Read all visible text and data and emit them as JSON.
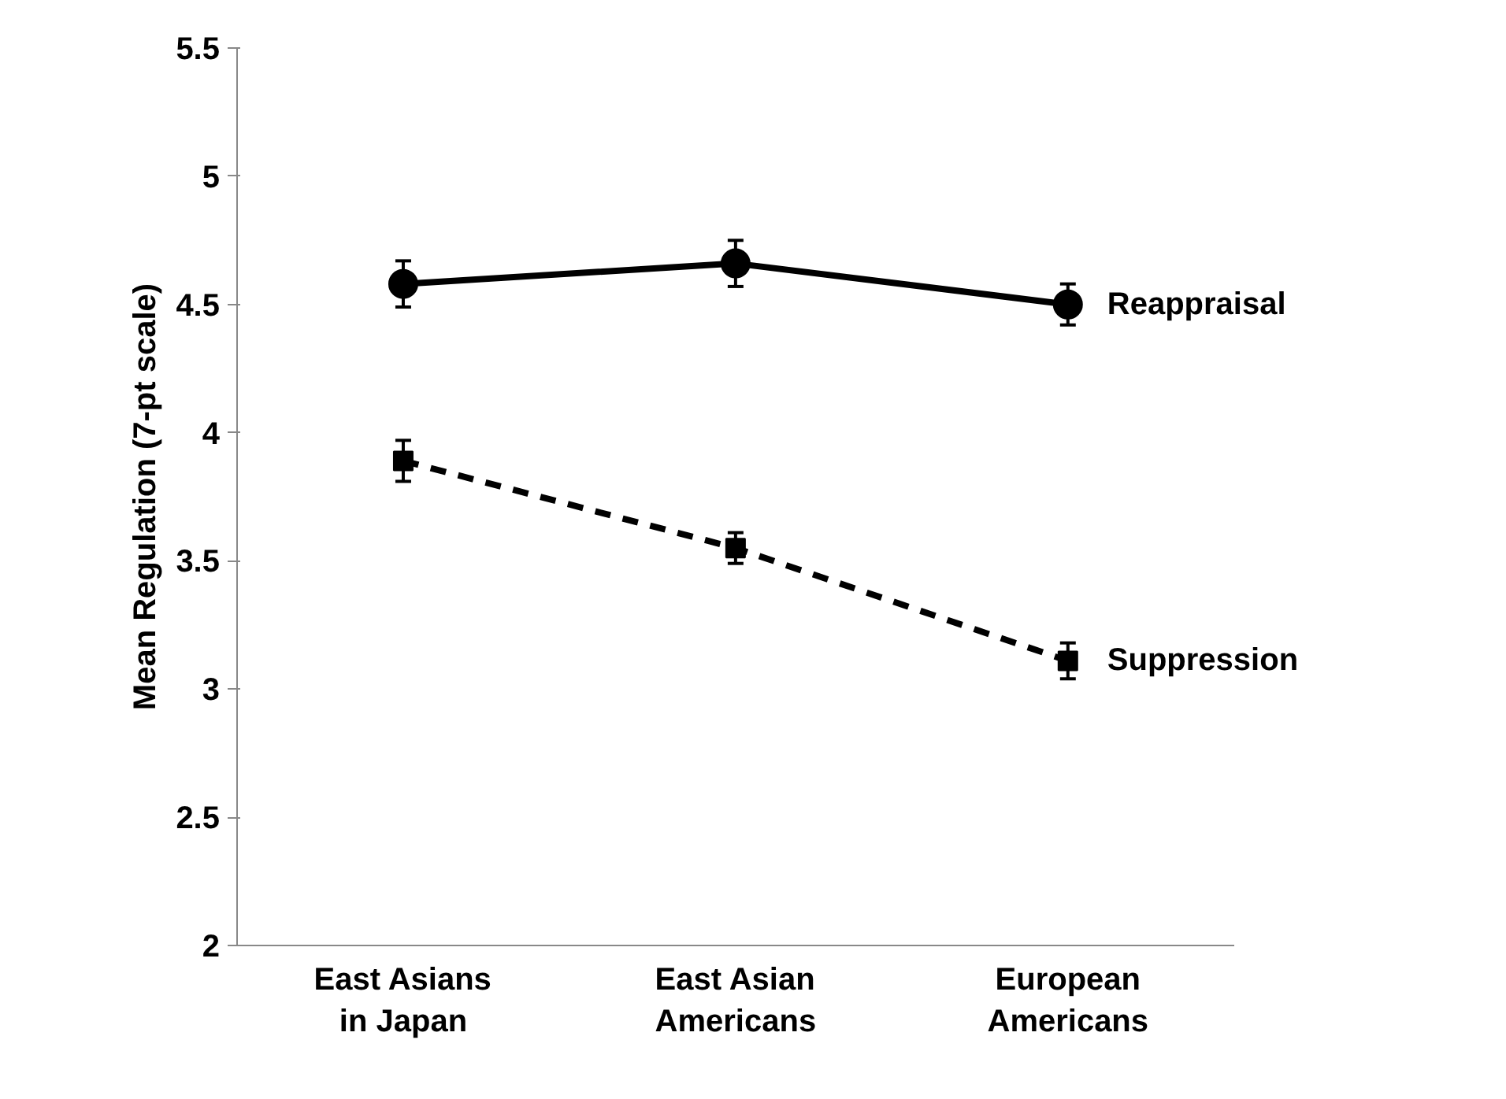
{
  "chart_data": {
    "type": "line",
    "ylabel": "Mean Regulation (7-pt scale)",
    "categories": [
      "East Asians\nin Japan",
      "East Asian\nAmericans",
      "European\nAmericans"
    ],
    "series": [
      {
        "name": "Reappraisal",
        "color": "#000000",
        "values": [
          4.58,
          4.66,
          4.5
        ],
        "errors": [
          0.09,
          0.09,
          0.08
        ],
        "marker": "circle",
        "line_style": "solid"
      },
      {
        "name": "Suppression",
        "color": "#000000",
        "values": [
          3.89,
          3.55,
          3.11
        ],
        "errors": [
          0.08,
          0.06,
          0.07
        ],
        "marker": "square",
        "line_style": "dashed"
      }
    ],
    "ylim": [
      2,
      5.5
    ],
    "yticks": [
      2,
      2.5,
      3,
      3.5,
      4,
      4.5,
      5,
      5.5
    ],
    "grid": false
  }
}
